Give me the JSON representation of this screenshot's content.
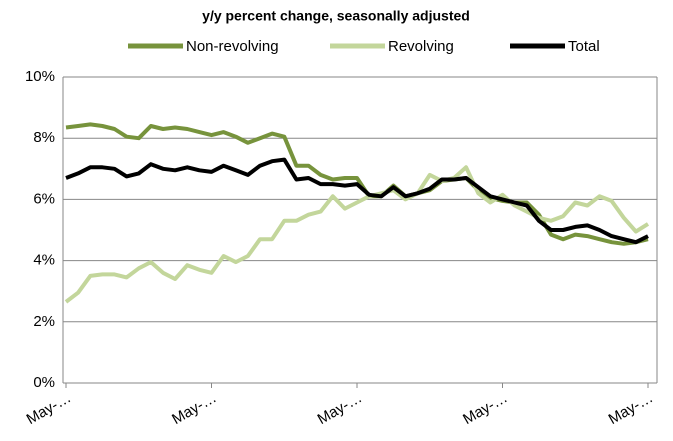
{
  "chart_data": {
    "type": "line",
    "subtitle": "y/y percent change, seasonally adjusted",
    "categories": [
      "May-…",
      null,
      null,
      null,
      null,
      null,
      null,
      null,
      null,
      null,
      null,
      null,
      "May-…",
      null,
      null,
      null,
      null,
      null,
      null,
      null,
      null,
      null,
      null,
      null,
      "May-…",
      null,
      null,
      null,
      null,
      null,
      null,
      null,
      null,
      null,
      null,
      null,
      "May-…",
      null,
      null,
      null,
      null,
      null,
      null,
      null,
      null,
      null,
      null,
      null,
      "May-…"
    ],
    "series": [
      {
        "name": "Non-revolving",
        "color": "#77933c",
        "values": [
          8.35,
          8.4,
          8.45,
          8.4,
          8.3,
          8.05,
          8.0,
          8.4,
          8.3,
          8.35,
          8.3,
          8.2,
          8.1,
          8.2,
          8.05,
          7.85,
          8.0,
          8.15,
          8.05,
          7.1,
          7.1,
          6.8,
          6.65,
          6.7,
          6.7,
          6.1,
          6.1,
          6.45,
          6.1,
          6.2,
          6.3,
          6.6,
          6.65,
          6.7,
          6.3,
          6.05,
          5.95,
          5.9,
          5.9,
          5.5,
          4.85,
          4.7,
          4.85,
          4.8,
          4.7,
          4.6,
          4.55,
          4.6,
          4.7
        ]
      },
      {
        "name": "Revolving",
        "color": "#c3d69b",
        "values": [
          2.65,
          2.95,
          3.5,
          3.55,
          3.55,
          3.45,
          3.75,
          3.95,
          3.6,
          3.4,
          3.85,
          3.7,
          3.6,
          4.15,
          3.95,
          4.15,
          4.7,
          4.7,
          5.3,
          5.3,
          5.5,
          5.6,
          6.1,
          5.7,
          5.9,
          6.1,
          6.2,
          6.3,
          6.0,
          6.2,
          6.8,
          6.6,
          6.7,
          7.05,
          6.2,
          5.9,
          6.15,
          5.8,
          5.6,
          5.4,
          5.3,
          5.45,
          5.9,
          5.8,
          6.1,
          5.95,
          5.4,
          4.95,
          5.2
        ]
      },
      {
        "name": "Total",
        "color": "#000000",
        "values": [
          6.7,
          6.85,
          7.05,
          7.05,
          7.0,
          6.75,
          6.85,
          7.15,
          7.0,
          6.95,
          7.05,
          6.95,
          6.9,
          7.1,
          6.95,
          6.8,
          7.1,
          7.25,
          7.3,
          6.65,
          6.7,
          6.5,
          6.5,
          6.45,
          6.5,
          6.15,
          6.1,
          6.4,
          6.1,
          6.2,
          6.35,
          6.65,
          6.65,
          6.7,
          6.4,
          6.1,
          6.0,
          5.9,
          5.8,
          5.3,
          5.0,
          5.0,
          5.1,
          5.15,
          5.0,
          4.8,
          4.7,
          4.6,
          4.8
        ]
      }
    ],
    "ylim": [
      0,
      10
    ],
    "yticks": [
      {
        "value": 0,
        "label": "0%"
      },
      {
        "value": 2,
        "label": "2%"
      },
      {
        "value": 4,
        "label": "4%"
      },
      {
        "value": 6,
        "label": "6%"
      },
      {
        "value": 8,
        "label": "8%"
      },
      {
        "value": 10,
        "label": "10%"
      }
    ],
    "grid": true,
    "legend": "top"
  }
}
